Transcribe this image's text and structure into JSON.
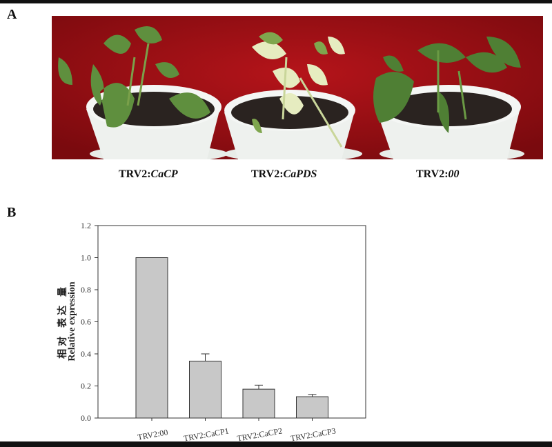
{
  "panel_a": {
    "label": "A",
    "captions": [
      {
        "prefix": "TRV2:",
        "gene": "CaCP"
      },
      {
        "prefix": "TRV2:",
        "gene": "CaPDS"
      },
      {
        "prefix": "TRV2:",
        "gene": "00"
      }
    ],
    "colors": {
      "background": "#9e0d12",
      "pot": "#eef1ee",
      "soil": "#2a2320",
      "leaf": "#5f8f3e",
      "bleached_leaf": "#e6ecc0"
    }
  },
  "panel_b": {
    "label": "B"
  },
  "chart_data": {
    "type": "bar",
    "categories": [
      "TRV2:00",
      "TRV2:CaCP1",
      "TRV2:CaCP2",
      "TRV2:CaCP3"
    ],
    "values": [
      1.0,
      0.355,
      0.18,
      0.133
    ],
    "error_upper": [
      0,
      0.045,
      0.025,
      0.014
    ],
    "ylabel_cn": "相对 表达 量",
    "ylabel": "Relative expression",
    "xlabel": "",
    "ylim": [
      0,
      1.2
    ],
    "yticks": [
      "0.0",
      "0.2",
      "0.4",
      "0.6",
      "0.8",
      "1.0",
      "1.2"
    ],
    "grid": false,
    "bar_color": "#c8c8c8"
  }
}
